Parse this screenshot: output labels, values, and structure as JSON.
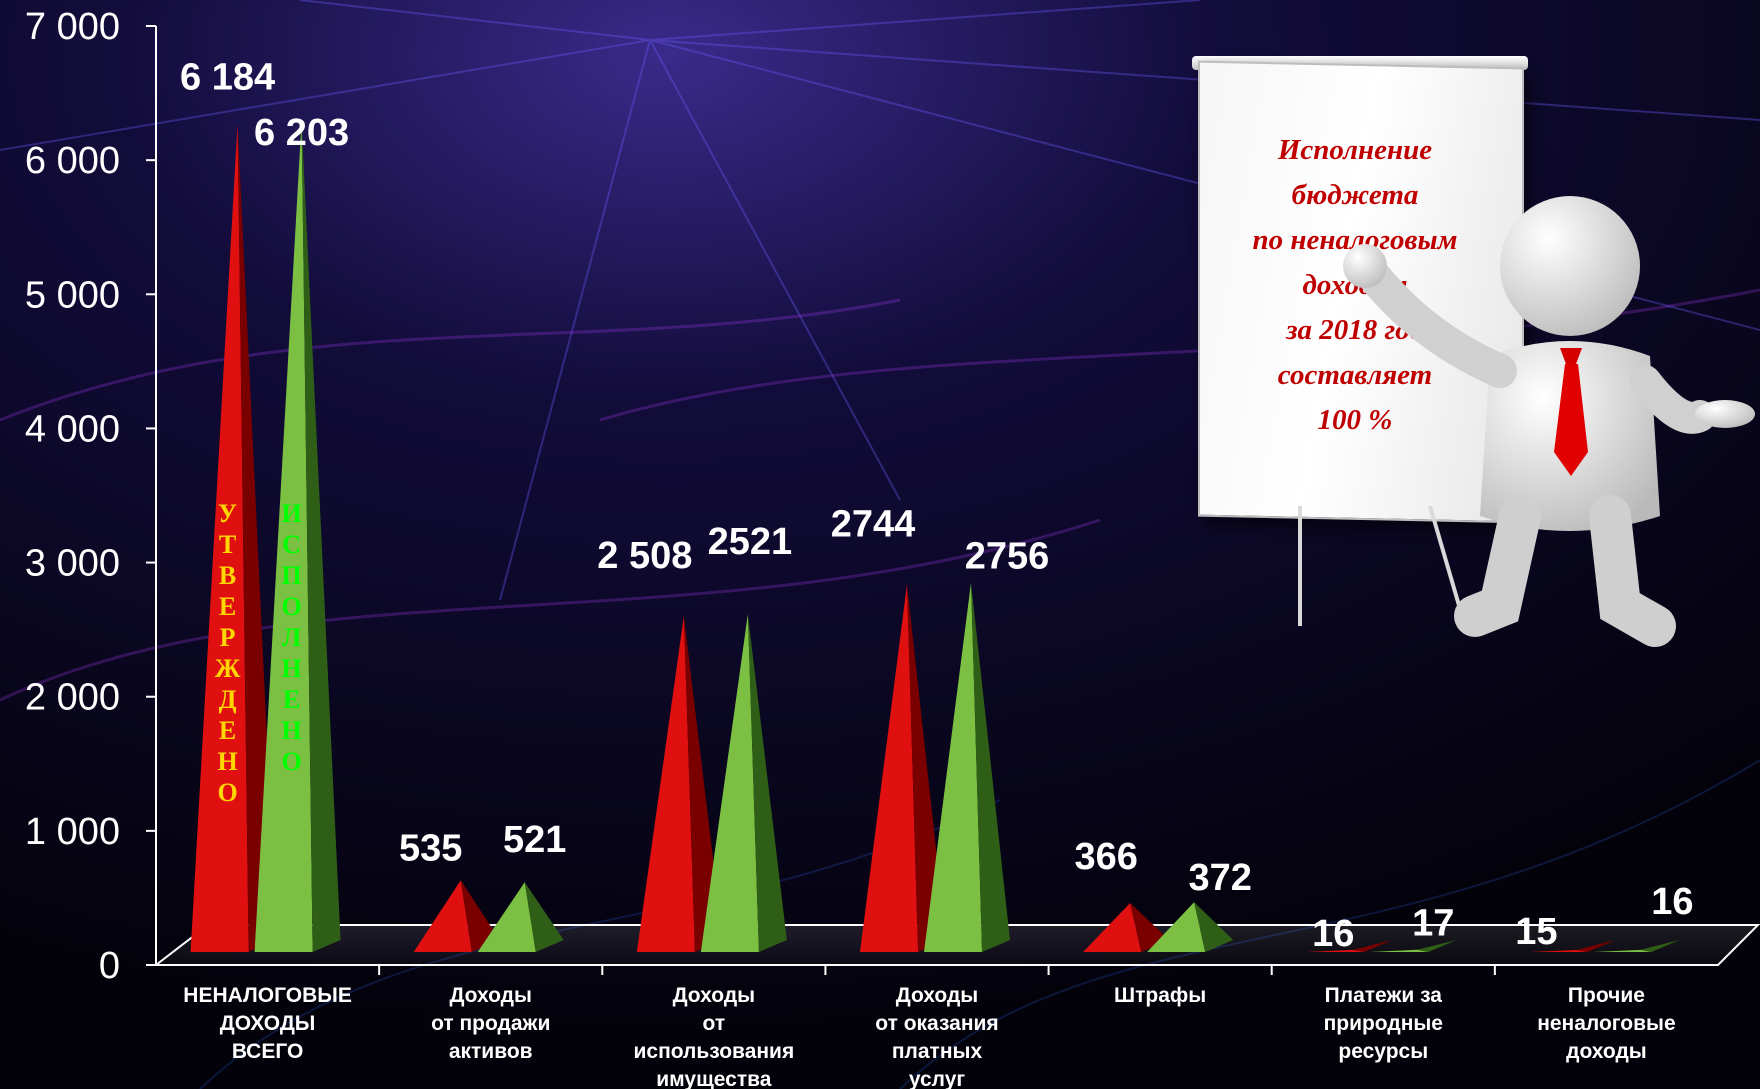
{
  "chart_data": {
    "type": "bar",
    "categories": [
      [
        "НЕНАЛОГОВЫЕ",
        "ДОХОДЫ",
        "ВСЕГО"
      ],
      [
        "Доходы",
        "от продажи",
        "активов"
      ],
      [
        "Доходы",
        "от",
        "использования",
        "имущества"
      ],
      [
        "Доходы",
        "от оказания",
        "платных",
        "услуг"
      ],
      [
        "Штрафы"
      ],
      [
        "Платежи за",
        "природные",
        "ресурсы"
      ],
      [
        "Прочие",
        "неналоговые",
        "доходы"
      ]
    ],
    "series": [
      {
        "name": "УТВЕРЖДЕНО",
        "color": "#cc0000",
        "values": [
          6184,
          535,
          2508,
          2744,
          366,
          16,
          15
        ],
        "labels": [
          "6 184",
          "535",
          "2 508",
          "2744",
          "366",
          "16",
          "15"
        ]
      },
      {
        "name": "ИСПОЛНЕНО",
        "color": "#4f8f2a",
        "values": [
          6203,
          521,
          2521,
          2756,
          372,
          17,
          16
        ],
        "labels": [
          "6 203",
          "521",
          "2521",
          "2756",
          "372",
          "17",
          "16"
        ]
      }
    ],
    "series_label_colors": [
      "#ffd700",
      "#00ff00"
    ],
    "yticks": [
      "0",
      "1 000",
      "2 000",
      "3 000",
      "4 000",
      "5 000",
      "6 000",
      "7 000"
    ],
    "ylim": [
      0,
      7000
    ],
    "xlabel": "",
    "ylabel": "",
    "grid": false,
    "legend": "none"
  },
  "callout": {
    "text": "Исполнение\nбюджета\nпо неналоговым\nдоходам\nза 2018 год\nсоставляет\n100 %"
  }
}
